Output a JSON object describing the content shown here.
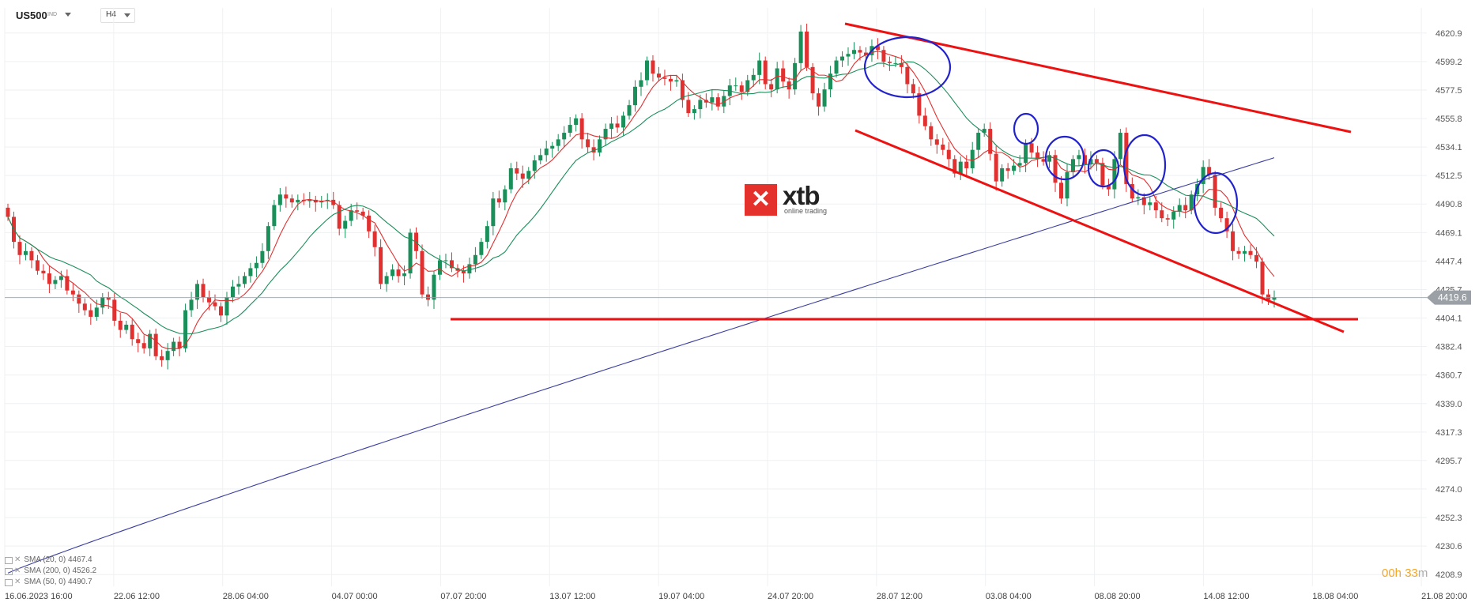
{
  "header": {
    "symbol": "US500",
    "symbol_tag": "IND",
    "timeframe": "H4"
  },
  "indicators": [
    {
      "label": "SMA (20, 0) 4467.4",
      "color": "#e03030"
    },
    {
      "label": "SMA (200, 0) 4526.2",
      "color": "#3a3ea0"
    },
    {
      "label": "SMA (50, 0) 4490.7",
      "color": "#1a8f5a"
    }
  ],
  "countdown": {
    "hours": "00h",
    "minutes": "33",
    "unit": "m"
  },
  "logo": {
    "word": "xtb",
    "sub": "online trading"
  },
  "colors": {
    "bull": "#1a8f5a",
    "bear": "#e03030",
    "annotation_red": "#ee1111",
    "annotation_blue": "#2222cc",
    "price_tag": "#9aa0a6"
  },
  "chart_data": {
    "type": "candlestick",
    "ylim": [
      4200,
      4640
    ],
    "y_ticks": [
      4620.9,
      4599.2,
      4577.5,
      4555.8,
      4534.1,
      4512.5,
      4490.8,
      4469.1,
      4447.4,
      4425.7,
      4404.1,
      4382.4,
      4360.7,
      4339.0,
      4317.3,
      4295.7,
      4274.0,
      4252.3,
      4230.6,
      4208.9
    ],
    "x_ticks": [
      "16.06.2023 16:00",
      "22.06 12:00",
      "28.06 04:00",
      "04.07 00:00",
      "07.07 20:00",
      "13.07 12:00",
      "19.07 04:00",
      "24.07 20:00",
      "28.07 12:00",
      "03.08 04:00",
      "08.08 20:00",
      "14.08 12:00",
      "18.08 04:00",
      "21.08 20:00"
    ],
    "current_price": 4419.6,
    "closes": [
      4481,
      4462,
      4452,
      4455,
      4448,
      4440,
      4438,
      4430,
      4433,
      4436,
      4425,
      4422,
      4415,
      4410,
      4405,
      4412,
      4420,
      4418,
      4402,
      4395,
      4399,
      4388,
      4385,
      4381,
      4392,
      4375,
      4372,
      4379,
      4386,
      4381,
      4410,
      4418,
      4430,
      4420,
      4416,
      4413,
      4406,
      4420,
      4428,
      4430,
      4436,
      4442,
      4446,
      4455,
      4474,
      4490,
      4498,
      4495,
      4492,
      4494,
      4493,
      4494,
      4492,
      4493,
      4494,
      4490,
      4472,
      4478,
      4486,
      4485,
      4482,
      4470,
      4458,
      4430,
      4436,
      4441,
      4436,
      4438,
      4469,
      4455,
      4422,
      4418,
      4437,
      4448,
      4448,
      4442,
      4440,
      4438,
      4445,
      4452,
      4462,
      4474,
      4495,
      4492,
      4502,
      4518,
      4514,
      4510,
      4516,
      4524,
      4528,
      4533,
      4535,
      4540,
      4545,
      4551,
      4556,
      4540,
      4534,
      4530,
      4540,
      4548,
      4552,
      4549,
      4558,
      4566,
      4580,
      4585,
      4600,
      4590,
      4587,
      4586,
      4584,
      4585,
      4570,
      4560,
      4563,
      4570,
      4568,
      4572,
      4565,
      4573,
      4581,
      4581,
      4576,
      4585,
      4589,
      4600,
      4582,
      4578,
      4594,
      4584,
      4578,
      4598,
      4622,
      4595,
      4575,
      4565,
      4578,
      4590,
      4600,
      4603,
      4605,
      4608,
      4606,
      4604,
      4611,
      4608,
      4599,
      4598,
      4598,
      4595,
      4582,
      4575,
      4558,
      4550,
      4540,
      4536,
      4532,
      4525,
      4514,
      4523,
      4518,
      4532,
      4545,
      4548,
      4529,
      4508,
      4518,
      4516,
      4520,
      4522,
      4537,
      4530,
      4525,
      4523,
      4528,
      4507,
      4495,
      4515,
      4525,
      4528,
      4521,
      4525,
      4522,
      4505,
      4502,
      4525,
      4545,
      4506,
      4495,
      4496,
      4490,
      4492,
      4486,
      4480,
      4479,
      4485,
      4490,
      4486,
      4498,
      4506,
      4519,
      4513,
      4488,
      4480,
      4470,
      4455,
      4453,
      4455,
      4452,
      4447,
      4422,
      4418,
      4420
    ]
  }
}
